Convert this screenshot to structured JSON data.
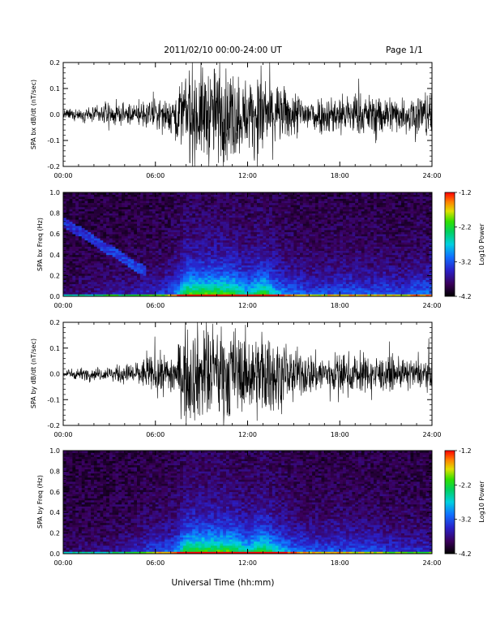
{
  "header": {
    "title": "2011/02/10  00:00-24:00 UT",
    "page": "Page 1/1"
  },
  "chart_data": [
    {
      "type": "line",
      "ylabel": "SPA bx dB/dt (nT/sec)",
      "xlim": [
        0,
        24
      ],
      "ylim": [
        -0.2,
        0.2
      ],
      "xticks": [
        "00:00",
        "06:00",
        "12:00",
        "18:00",
        "24:00"
      ],
      "yticks": [
        "-0.2",
        "-0.1",
        "0.0",
        "0.1",
        "0.2"
      ],
      "envelope": {
        "hours": [
          0,
          1,
          2,
          3,
          4,
          5,
          6,
          7,
          7.5,
          8,
          9,
          10,
          11,
          12,
          13,
          14,
          15,
          16,
          17,
          18,
          19,
          20,
          21,
          22,
          23,
          24
        ],
        "amplitude": [
          0.02,
          0.025,
          0.03,
          0.05,
          0.04,
          0.05,
          0.06,
          0.08,
          0.12,
          0.2,
          0.2,
          0.2,
          0.2,
          0.14,
          0.2,
          0.12,
          0.1,
          0.08,
          0.08,
          0.09,
          0.09,
          0.08,
          0.09,
          0.07,
          0.1,
          0.1
        ]
      }
    },
    {
      "type": "heatmap",
      "ylabel": "SPA bx Freq (Hz)",
      "xlim": [
        0,
        24
      ],
      "ylim": [
        0,
        1.0
      ],
      "xticks": [
        "00:00",
        "06:00",
        "12:00",
        "18:00",
        "24:00"
      ],
      "yticks": [
        "0.0",
        "0.2",
        "0.4",
        "0.6",
        "0.8",
        "1.0"
      ],
      "colorbar": {
        "label": "Log10 Power",
        "range": [
          -4.2,
          -1.2
        ],
        "ticks": [
          "-1.2",
          "-2.2",
          "-3.2",
          "-4.2"
        ]
      }
    },
    {
      "type": "line",
      "ylabel": "SPA by dB/dt (nT/sec)",
      "xlim": [
        0,
        24
      ],
      "ylim": [
        -0.2,
        0.2
      ],
      "xticks": [
        "00:00",
        "06:00",
        "12:00",
        "18:00",
        "24:00"
      ],
      "yticks": [
        "-0.2",
        "-0.1",
        "0.0",
        "0.1",
        "0.2"
      ],
      "envelope": {
        "hours": [
          0,
          1,
          2,
          3,
          4,
          5,
          6,
          7,
          7.5,
          8,
          9,
          10,
          11,
          12,
          13,
          14,
          15,
          16,
          17,
          18,
          19,
          20,
          21,
          22,
          23,
          24
        ],
        "amplitude": [
          0.02,
          0.025,
          0.025,
          0.03,
          0.04,
          0.06,
          0.08,
          0.09,
          0.12,
          0.2,
          0.2,
          0.2,
          0.2,
          0.15,
          0.2,
          0.14,
          0.1,
          0.09,
          0.08,
          0.09,
          0.08,
          0.08,
          0.07,
          0.06,
          0.06,
          0.06
        ]
      }
    },
    {
      "type": "heatmap",
      "ylabel": "SPA by Freq (Hz)",
      "xlim": [
        0,
        24
      ],
      "ylim": [
        0,
        1.0
      ],
      "xticks": [
        "00:00",
        "06:00",
        "12:00",
        "18:00",
        "24:00"
      ],
      "yticks": [
        "0.0",
        "0.2",
        "0.4",
        "0.6",
        "0.8",
        "1.0"
      ],
      "colorbar": {
        "label": "Log10 Power",
        "range": [
          -4.2,
          -1.2
        ],
        "ticks": [
          "-1.2",
          "-2.2",
          "-3.2",
          "-4.2"
        ]
      }
    }
  ],
  "xlabel": "Universal Time (hh:mm)"
}
